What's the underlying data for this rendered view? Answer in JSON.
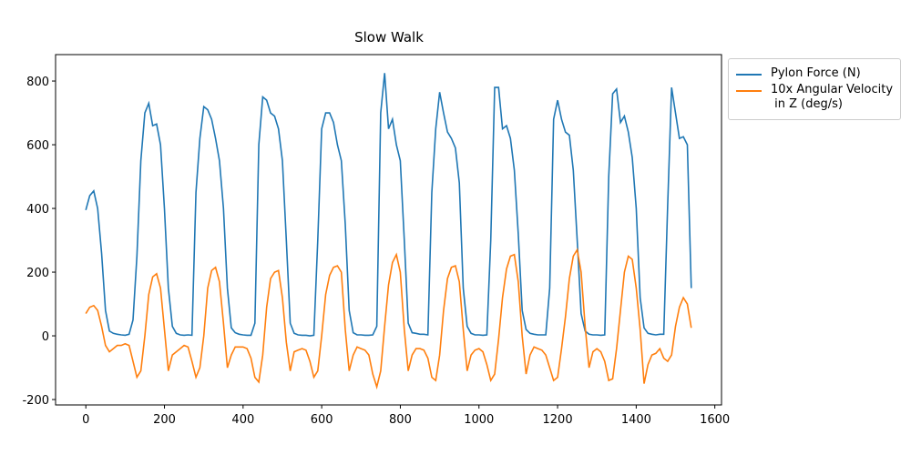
{
  "chart_data": {
    "type": "line",
    "title": "Slow Walk",
    "x": [
      0,
      10,
      20,
      30,
      40,
      50,
      60,
      70,
      80,
      90,
      100,
      110,
      120,
      130,
      140,
      150,
      160,
      170,
      180,
      190,
      200,
      210,
      220,
      230,
      240,
      250,
      260,
      270,
      280,
      290,
      300,
      310,
      320,
      330,
      340,
      350,
      360,
      370,
      380,
      390,
      400,
      410,
      420,
      430,
      440,
      450,
      460,
      470,
      480,
      490,
      500,
      510,
      520,
      530,
      540,
      550,
      560,
      570,
      580,
      590,
      600,
      610,
      620,
      630,
      640,
      650,
      660,
      670,
      680,
      690,
      700,
      710,
      720,
      730,
      740,
      750,
      760,
      770,
      780,
      790,
      800,
      810,
      820,
      830,
      840,
      850,
      860,
      870,
      880,
      890,
      900,
      910,
      920,
      930,
      940,
      950,
      960,
      970,
      980,
      990,
      1000,
      1010,
      1020,
      1030,
      1040,
      1050,
      1060,
      1070,
      1080,
      1090,
      1100,
      1110,
      1120,
      1130,
      1140,
      1150,
      1160,
      1170,
      1180,
      1190,
      1200,
      1210,
      1220,
      1230,
      1240,
      1250,
      1260,
      1270,
      1280,
      1290,
      1300,
      1310,
      1320,
      1330,
      1340,
      1350,
      1360,
      1370,
      1380,
      1390,
      1400,
      1410,
      1420,
      1430,
      1440,
      1450,
      1460,
      1470,
      1480,
      1490,
      1500,
      1510,
      1520,
      1530,
      1540
    ],
    "series": [
      {
        "name": "Pylon Force (N)",
        "color": "#1f77b4",
        "values": [
          395,
          440,
          455,
          400,
          260,
          80,
          15,
          8,
          5,
          3,
          2,
          5,
          50,
          250,
          550,
          700,
          730,
          660,
          665,
          600,
          400,
          150,
          30,
          8,
          3,
          2,
          3,
          2,
          450,
          620,
          720,
          710,
          680,
          620,
          550,
          400,
          150,
          25,
          10,
          5,
          3,
          2,
          2,
          40,
          600,
          750,
          740,
          700,
          690,
          650,
          550,
          300,
          40,
          8,
          3,
          2,
          2,
          0,
          2,
          300,
          650,
          700,
          700,
          670,
          600,
          550,
          350,
          80,
          10,
          3,
          3,
          2,
          2,
          3,
          30,
          700,
          825,
          650,
          680,
          600,
          550,
          300,
          40,
          10,
          8,
          5,
          5,
          3,
          450,
          650,
          765,
          700,
          640,
          620,
          590,
          480,
          150,
          30,
          8,
          3,
          3,
          2,
          3,
          300,
          780,
          780,
          650,
          660,
          620,
          520,
          320,
          80,
          20,
          8,
          5,
          3,
          3,
          3,
          150,
          680,
          740,
          680,
          640,
          630,
          520,
          300,
          70,
          15,
          5,
          3,
          3,
          2,
          3,
          500,
          760,
          775,
          670,
          690,
          640,
          560,
          400,
          120,
          25,
          8,
          5,
          3,
          5,
          5,
          410,
          780,
          700,
          620,
          625,
          600,
          150
        ]
      },
      {
        "name": "10x Angular Velocity\n in Z (deg/s)",
        "color": "#ff7f0e",
        "values": [
          70,
          90,
          95,
          80,
          30,
          -30,
          -50,
          -40,
          -30,
          -30,
          -25,
          -30,
          -80,
          -130,
          -110,
          0,
          130,
          185,
          195,
          150,
          20,
          -110,
          -60,
          -50,
          -40,
          -30,
          -35,
          -80,
          -130,
          -100,
          0,
          150,
          205,
          215,
          170,
          40,
          -100,
          -60,
          -35,
          -35,
          -35,
          -40,
          -70,
          -130,
          -145,
          -60,
          90,
          180,
          200,
          205,
          120,
          -20,
          -110,
          -50,
          -45,
          -40,
          -45,
          -80,
          -130,
          -110,
          0,
          130,
          190,
          215,
          220,
          200,
          20,
          -110,
          -60,
          -35,
          -40,
          -45,
          -60,
          -120,
          -160,
          -110,
          30,
          160,
          230,
          255,
          200,
          20,
          -110,
          -60,
          -40,
          -40,
          -45,
          -70,
          -130,
          -140,
          -60,
          80,
          180,
          215,
          220,
          170,
          20,
          -110,
          -60,
          -45,
          -40,
          -50,
          -90,
          -140,
          -120,
          -10,
          120,
          210,
          250,
          255,
          170,
          0,
          -120,
          -60,
          -35,
          -40,
          -45,
          -60,
          -100,
          -140,
          -130,
          -40,
          60,
          180,
          250,
          270,
          200,
          30,
          -100,
          -50,
          -40,
          -50,
          -80,
          -140,
          -135,
          -40,
          80,
          200,
          250,
          240,
          150,
          20,
          -150,
          -90,
          -60,
          -55,
          -40,
          -70,
          -80,
          -60,
          30,
          90,
          120,
          100,
          25
        ]
      }
    ],
    "xlim": [
      -77,
      1617
    ],
    "ylim": [
      -217,
      883
    ],
    "xticks": [
      0,
      200,
      400,
      600,
      800,
      1000,
      1200,
      1400,
      1600
    ],
    "yticks": [
      -200,
      0,
      200,
      400,
      600,
      800
    ]
  }
}
